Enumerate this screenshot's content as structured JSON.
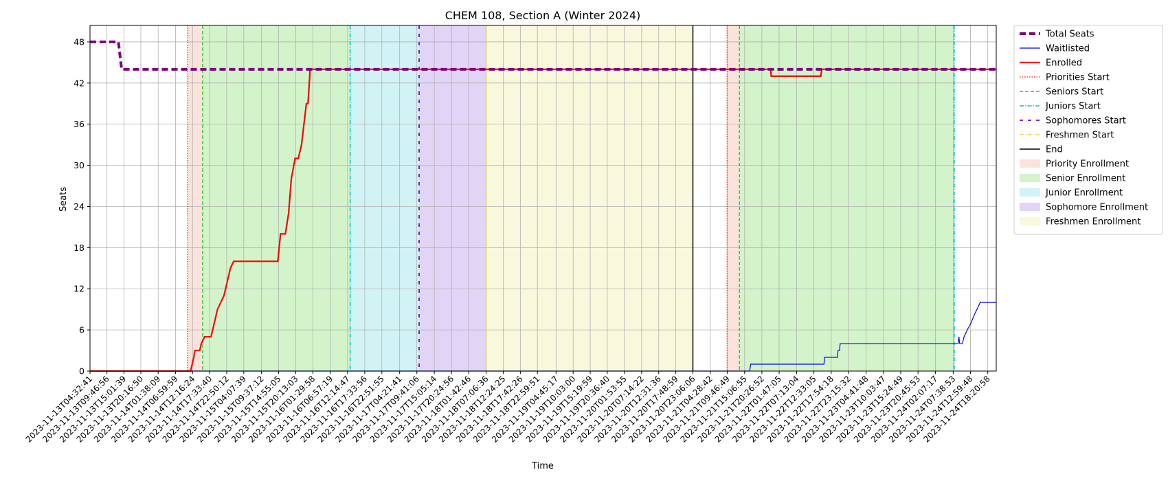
{
  "chart_data": {
    "type": "line",
    "title": "CHEM 108, Section A (Winter 2024)",
    "xlabel": "Time",
    "ylabel": "Seats",
    "ylim": [
      0,
      50.4
    ],
    "yticks": [
      0,
      6,
      12,
      18,
      24,
      30,
      36,
      42,
      48
    ],
    "grid": true,
    "legend_position": "outside-right-top",
    "x_range": [
      "2023-11-13T04:32:41",
      "2023-11-24T20:58:00"
    ],
    "x_tick_labels": [
      "2023-11-13T04:32:41",
      "2023-11-13T09:46:56",
      "2023-11-13T15:01:39",
      "2023-11-13T20:16:50",
      "2023-11-14T01:38:09",
      "2023-11-14T06:59:59",
      "2023-11-14T12:16:24",
      "2023-11-14T17:33:40",
      "2023-11-14T22:50:12",
      "2023-11-15T04:07:39",
      "2023-11-15T09:37:12",
      "2023-11-15T14:55:05",
      "2023-11-15T20:13:03",
      "2023-11-16T01:29:58",
      "2023-11-16T06:57:19",
      "2023-11-16T12:14:47",
      "2023-11-16T17:33:56",
      "2023-11-16T22:51:55",
      "2023-11-17T04:21:41",
      "2023-11-17T09:41:06",
      "2023-11-17T15:05:14",
      "2023-11-17T20:24:56",
      "2023-11-18T01:42:46",
      "2023-11-18T07:06:36",
      "2023-11-18T12:24:25",
      "2023-11-18T17:42:26",
      "2023-11-18T22:59:51",
      "2023-11-19T04:45:17",
      "2023-11-19T10:03:00",
      "2023-11-19T15:19:59",
      "2023-11-19T20:36:40",
      "2023-11-20T01:53:55",
      "2023-11-20T07:14:22",
      "2023-11-20T12:31:36",
      "2023-11-20T17:48:59",
      "2023-11-20T23:06:06",
      "2023-11-21T04:28:42",
      "2023-11-21T09:46:49",
      "2023-11-21T15:06:55",
      "2023-11-21T20:26:52",
      "2023-11-22T01:47:05",
      "2023-11-22T07:13:04",
      "2023-11-22T12:33:05",
      "2023-11-22T17:54:18",
      "2023-11-22T23:15:32",
      "2023-11-23T04:41:48",
      "2023-11-23T10:03:47",
      "2023-11-23T15:24:49",
      "2023-11-23T20:45:53",
      "2023-11-24T02:07:17",
      "2023-11-24T07:38:53",
      "2023-11-24T12:59:48",
      "2023-11-24T18:20:58"
    ],
    "phases": [
      {
        "name": "Priority Enrollment",
        "start": "2023-11-14T10:46:00",
        "end": "2023-11-14T15:24:00",
        "color": "#f4b8a4"
      },
      {
        "name": "Senior Enrollment",
        "start": "2023-11-14T15:24:00",
        "end": "2023-11-16T13:03:00",
        "color": "#90e07a"
      },
      {
        "name": "Junior Enrollment",
        "start": "2023-11-16T13:03:00",
        "end": "2023-11-17T10:23:00",
        "color": "#8fe0e6"
      },
      {
        "name": "Sophomore Enrollment",
        "start": "2023-11-17T10:23:00",
        "end": "2023-11-18T07:07:00",
        "color": "#b794ec"
      },
      {
        "name": "Freshmen Enrollment",
        "start": "2023-11-18T07:07:00",
        "end": "2023-11-20T23:06:06",
        "color": "#eeeea8"
      },
      {
        "name": "Priority Enrollment",
        "start": "2023-11-21T09:42:00",
        "end": "2023-11-21T13:30:00",
        "color": "#f4b8a4"
      },
      {
        "name": "Senior Enrollment",
        "start": "2023-11-21T13:30:00",
        "end": "2023-11-24T07:58:00",
        "color": "#90e07a"
      }
    ],
    "markers": [
      {
        "series": "Priorities Start",
        "x": "2023-11-14T10:46:00"
      },
      {
        "series": "Seniors Start",
        "x": "2023-11-14T15:24:00"
      },
      {
        "series": "Juniors Start",
        "x": "2023-11-16T13:03:00"
      },
      {
        "series": "Sophomores Start",
        "x": "2023-11-17T10:23:00"
      },
      {
        "series": "Freshmen Start",
        "x": "2023-11-18T07:07:00"
      },
      {
        "series": "End",
        "x": "2023-11-20T23:06:06"
      },
      {
        "series": "Priorities Start",
        "x": "2023-11-21T09:42:00"
      },
      {
        "series": "Seniors Start",
        "x": "2023-11-21T13:30:00"
      },
      {
        "series": "Juniors Start",
        "x": "2023-11-24T07:58:00"
      }
    ],
    "series": [
      {
        "name": "Total Seats",
        "color": "#800080",
        "points": [
          [
            "2023-11-13T04:32:41",
            48
          ],
          [
            "2023-11-13T13:20:00",
            48
          ],
          [
            "2023-11-13T14:20:00",
            44
          ],
          [
            "2023-11-24T20:58:00",
            44
          ]
        ]
      },
      {
        "name": "Waitlisted",
        "color": "#0000ff",
        "points": [
          [
            "2023-11-13T04:32:41",
            0
          ],
          [
            "2023-11-21T16:40:00",
            0
          ],
          [
            "2023-11-21T17:00:00",
            1
          ],
          [
            "2023-11-22T15:40:00",
            1
          ],
          [
            "2023-11-22T15:50:00",
            2
          ],
          [
            "2023-11-22T19:50:00",
            2
          ],
          [
            "2023-11-22T20:00:00",
            3
          ],
          [
            "2023-11-22T20:30:00",
            3
          ],
          [
            "2023-11-22T20:40:00",
            4
          ],
          [
            "2023-11-24T09:10:00",
            4
          ],
          [
            "2023-11-24T09:25:00",
            5
          ],
          [
            "2023-11-24T09:40:00",
            4
          ],
          [
            "2023-11-24T10:30:00",
            4
          ],
          [
            "2023-11-24T11:00:00",
            5
          ],
          [
            "2023-11-24T12:00:00",
            6
          ],
          [
            "2023-11-24T13:10:00",
            7
          ],
          [
            "2023-11-24T14:00:00",
            8
          ],
          [
            "2023-11-24T15:00:00",
            9
          ],
          [
            "2023-11-24T16:00:00",
            10
          ],
          [
            "2023-11-24T20:58:00",
            10
          ]
        ]
      },
      {
        "name": "Enrolled",
        "color": "#ff0000",
        "points": [
          [
            "2023-11-13T04:32:41",
            0
          ],
          [
            "2023-11-14T11:40:00",
            0
          ],
          [
            "2023-11-14T12:40:00",
            2
          ],
          [
            "2023-11-14T13:00:00",
            3
          ],
          [
            "2023-11-14T14:30:00",
            3
          ],
          [
            "2023-11-14T15:00:00",
            4
          ],
          [
            "2023-11-14T16:00:00",
            5
          ],
          [
            "2023-11-14T18:00:00",
            5
          ],
          [
            "2023-11-14T19:00:00",
            7
          ],
          [
            "2023-11-14T20:00:00",
            9
          ],
          [
            "2023-11-14T21:00:00",
            10
          ],
          [
            "2023-11-14T22:00:00",
            11
          ],
          [
            "2023-11-14T23:00:00",
            13
          ],
          [
            "2023-11-15T00:00:00",
            15
          ],
          [
            "2023-11-15T01:00:00",
            16
          ],
          [
            "2023-11-15T14:40:00",
            16
          ],
          [
            "2023-11-15T15:30:00",
            20
          ],
          [
            "2023-11-15T17:00:00",
            20
          ],
          [
            "2023-11-15T18:00:00",
            23
          ],
          [
            "2023-11-15T18:50:00",
            28
          ],
          [
            "2023-11-15T20:00:00",
            31
          ],
          [
            "2023-11-15T21:00:00",
            31
          ],
          [
            "2023-11-15T22:00:00",
            33
          ],
          [
            "2023-11-15T22:30:00",
            35
          ],
          [
            "2023-11-15T23:30:00",
            39
          ],
          [
            "2023-11-16T00:00:00",
            39
          ],
          [
            "2023-11-16T00:40:00",
            44
          ],
          [
            "2023-11-21T23:10:00",
            44
          ],
          [
            "2023-11-21T23:20:00",
            43
          ],
          [
            "2023-11-22T14:40:00",
            43
          ],
          [
            "2023-11-22T15:00:00",
            44
          ],
          [
            "2023-11-24T20:58:00",
            44
          ]
        ]
      }
    ],
    "legend": [
      {
        "label": "Total Seats",
        "kind": "line",
        "color": "#800080",
        "dash": "9 5",
        "width": 4
      },
      {
        "label": "Waitlisted",
        "kind": "line",
        "color": "#0000ff",
        "dash": "",
        "width": 1.2
      },
      {
        "label": "Enrolled",
        "kind": "line",
        "color": "#ff0000",
        "dash": "",
        "width": 2.2
      },
      {
        "label": "Priorities Start",
        "kind": "line",
        "color": "#ff3b1e",
        "dash": "1.5 2",
        "width": 1.5
      },
      {
        "label": "Seniors Start",
        "kind": "line",
        "color": "#33cc33",
        "dash": "5 3",
        "width": 1.5
      },
      {
        "label": "Juniors Start",
        "kind": "line",
        "color": "#00bfcf",
        "dash": "6 2 1.5 2",
        "width": 1.5
      },
      {
        "label": "Sophomores Start",
        "kind": "line",
        "color": "#6a0dcc",
        "dash": "5 7",
        "width": 1.8
      },
      {
        "label": "Freshmen Start",
        "kind": "line",
        "color": "#e8c820",
        "dash": "6 2 1.5 2",
        "width": 1.2
      },
      {
        "label": "End",
        "kind": "line",
        "color": "#000000",
        "dash": "",
        "width": 1.5
      },
      {
        "label": "Priority Enrollment",
        "kind": "patch",
        "color": "#f4b8a4"
      },
      {
        "label": "Senior Enrollment",
        "kind": "patch",
        "color": "#90e07a"
      },
      {
        "label": "Junior Enrollment",
        "kind": "patch",
        "color": "#8fe0e6"
      },
      {
        "label": "Sophomore Enrollment",
        "kind": "patch",
        "color": "#b794ec"
      },
      {
        "label": "Freshmen Enrollment",
        "kind": "patch",
        "color": "#eeeea8"
      }
    ]
  }
}
